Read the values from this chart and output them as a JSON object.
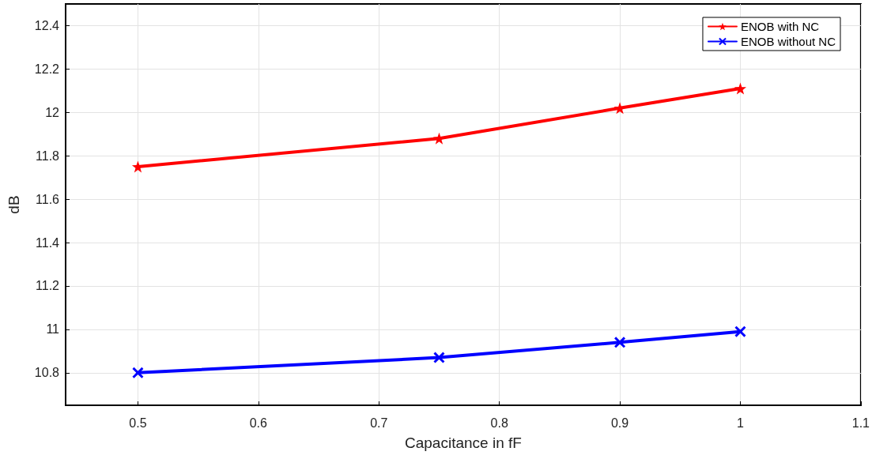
{
  "chart_data": {
    "type": "line",
    "xlabel": "Capacitance in fF",
    "ylabel": "dB",
    "x": [
      0.5,
      0.75,
      0.9,
      1
    ],
    "series": [
      {
        "name": "ENOB with NC",
        "color": "#ff0000",
        "marker": "star",
        "values": [
          11.75,
          11.88,
          12.02,
          12.11
        ]
      },
      {
        "name": "ENOB without NC",
        "color": "#0000ff",
        "marker": "cross",
        "values": [
          10.8,
          10.87,
          10.94,
          10.99
        ]
      }
    ],
    "xlim": [
      0.44,
      1.1
    ],
    "xticks": [
      0.5,
      0.6,
      0.7,
      0.8,
      0.9,
      1,
      1.1
    ],
    "ylim": [
      10.65,
      12.5
    ],
    "yticks": [
      10.8,
      11,
      11.2,
      11.4,
      11.6,
      11.8,
      12,
      12.2,
      12.4
    ],
    "grid": true,
    "legend": "top right",
    "line_style": "solid"
  }
}
